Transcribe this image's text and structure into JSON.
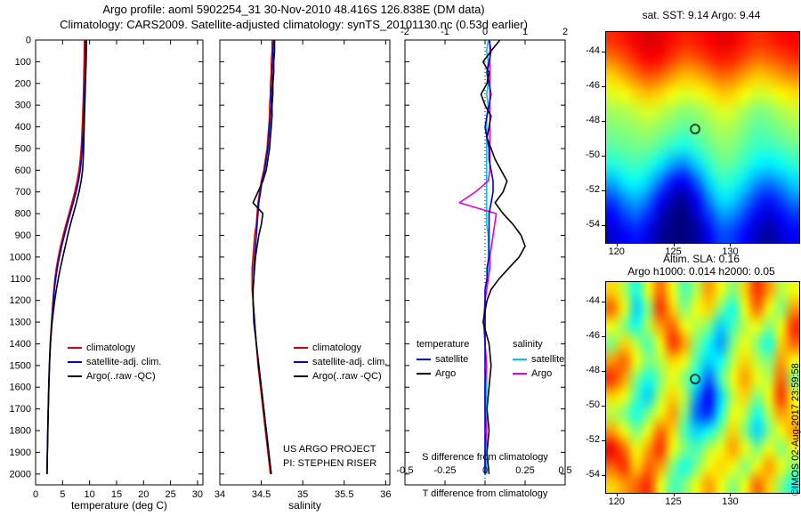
{
  "titles": {
    "line1": "Argo profile: aoml 5902254_31 30-Nov-2010 48.416S 126.838E (DM data)",
    "line2": "Climatology: CARS2009. Satellite-adjusted climatology: synTS_20101130.nc (0.53d earlier)"
  },
  "credit": "©IMOS 02-Aug-2017 23:59:58",
  "colors": {
    "climatology": "#dd0000",
    "satellite_adj": "#0000cc",
    "argo": "#000000",
    "satellite_sal": "#00c8dc",
    "argo_sal": "#e000e0"
  },
  "chart_data": [
    {
      "type": "line",
      "id": "temperature-profile",
      "xlabel": "temperature (deg C)",
      "xlim": [
        0,
        31
      ],
      "ylim": [
        0,
        2050
      ],
      "xticks": [
        0,
        5,
        10,
        15,
        20,
        25,
        30
      ],
      "yticks": [
        0,
        100,
        200,
        300,
        400,
        500,
        600,
        700,
        800,
        900,
        1000,
        1100,
        1200,
        1300,
        1400,
        1500,
        1600,
        1700,
        1800,
        1900,
        2000
      ],
      "depths": [
        0,
        50,
        100,
        150,
        200,
        250,
        300,
        350,
        400,
        450,
        500,
        550,
        600,
        650,
        700,
        750,
        800,
        850,
        900,
        950,
        1000,
        1050,
        1100,
        1150,
        1200,
        1300,
        1400,
        1500,
        1600,
        1700,
        1800,
        1900,
        2000
      ],
      "series": [
        {
          "name": "climatology",
          "color_key": "climatology",
          "values": [
            9.05,
            9.02,
            8.98,
            8.94,
            8.9,
            8.85,
            8.79,
            8.72,
            8.64,
            8.55,
            8.44,
            8.28,
            8.05,
            7.7,
            7.25,
            6.72,
            6.18,
            5.62,
            5.1,
            4.62,
            4.2,
            3.85,
            3.58,
            3.38,
            3.22,
            2.95,
            2.7,
            2.54,
            2.42,
            2.32,
            2.24,
            2.17,
            2.1
          ]
        },
        {
          "name": "satellite-adj. clim.",
          "color_key": "satellite_adj",
          "values": [
            9.3,
            9.28,
            9.24,
            9.19,
            9.13,
            9.07,
            9.01,
            8.94,
            8.87,
            8.78,
            8.66,
            8.5,
            8.28,
            7.95,
            7.5,
            6.98,
            6.42,
            5.85,
            5.32,
            4.83,
            4.4,
            4.02,
            3.72,
            3.48,
            3.3,
            3.0,
            2.73,
            2.56,
            2.44,
            2.34,
            2.26,
            2.18,
            2.11
          ]
        },
        {
          "name": "Argo(..raw -QC)",
          "color_key": "argo",
          "values": [
            9.42,
            9.4,
            9.36,
            9.3,
            9.24,
            9.18,
            9.12,
            9.06,
            9.0,
            8.95,
            8.9,
            8.82,
            8.7,
            8.45,
            8.05,
            7.55,
            7.0,
            6.45,
            5.95,
            5.5,
            5.05,
            4.6,
            4.2,
            3.85,
            3.55,
            3.05,
            2.75,
            2.58,
            2.45,
            2.35,
            2.27,
            2.2,
            2.13
          ]
        }
      ]
    },
    {
      "type": "line",
      "id": "salinity-profile",
      "xlabel": "salinity",
      "xlim": [
        34,
        36.05
      ],
      "ylim": [
        0,
        2050
      ],
      "xticks": [
        34,
        34.5,
        35,
        35.5,
        36
      ],
      "yticks": [
        0,
        100,
        200,
        300,
        400,
        500,
        600,
        700,
        800,
        900,
        1000,
        1100,
        1200,
        1300,
        1400,
        1500,
        1600,
        1700,
        1800,
        1900,
        2000
      ],
      "depths": [
        0,
        50,
        100,
        150,
        200,
        250,
        300,
        350,
        400,
        450,
        500,
        550,
        600,
        650,
        700,
        750,
        800,
        850,
        900,
        950,
        1000,
        1050,
        1100,
        1150,
        1200,
        1300,
        1400,
        1500,
        1600,
        1700,
        1800,
        1900,
        2000
      ],
      "notes": [
        "US ARGO PROJECT",
        "PI: STEPHEN RISER"
      ],
      "series": [
        {
          "name": "climatology",
          "color_key": "climatology",
          "values": [
            34.63,
            34.63,
            34.62,
            34.62,
            34.61,
            34.61,
            34.6,
            34.6,
            34.59,
            34.58,
            34.57,
            34.55,
            34.53,
            34.5,
            34.48,
            34.46,
            34.45,
            34.44,
            34.42,
            34.41,
            34.4,
            34.39,
            34.39,
            34.39,
            34.4,
            34.42,
            34.44,
            34.46,
            34.49,
            34.52,
            34.55,
            34.58,
            34.61
          ]
        },
        {
          "name": "satellite-adj. clim.",
          "color_key": "satellite_adj",
          "values": [
            34.65,
            34.64,
            34.64,
            34.63,
            34.63,
            34.62,
            34.62,
            34.61,
            34.6,
            34.59,
            34.58,
            34.56,
            34.54,
            34.51,
            34.49,
            34.47,
            34.46,
            34.45,
            34.44,
            34.43,
            34.42,
            34.41,
            34.41,
            34.4,
            34.4,
            34.42,
            34.44,
            34.47,
            34.5,
            34.53,
            34.56,
            34.59,
            34.62
          ]
        },
        {
          "name": "Argo(..raw -QC)",
          "color_key": "argo",
          "values": [
            34.66,
            34.66,
            34.65,
            34.65,
            34.64,
            34.64,
            34.63,
            34.63,
            34.62,
            34.61,
            34.6,
            34.58,
            34.56,
            34.52,
            34.46,
            34.4,
            34.52,
            34.5,
            34.47,
            34.45,
            34.43,
            34.42,
            34.41,
            34.4,
            34.4,
            34.41,
            34.44,
            34.47,
            34.5,
            34.53,
            34.56,
            34.59,
            34.62
          ]
        }
      ]
    },
    {
      "type": "line",
      "id": "difference-profile",
      "xlabel": "T difference from climatology",
      "s_label": "S difference from climatology",
      "xlim": [
        -2,
        2
      ],
      "s_xlim": [
        -0.5,
        0.5
      ],
      "ylim": [
        0,
        2050
      ],
      "xticks": [
        -2,
        -1,
        0,
        1,
        2
      ],
      "s_ticks": [
        -0.5,
        -0.25,
        0,
        0.25,
        0.5
      ],
      "yticks": [
        0,
        100,
        200,
        300,
        400,
        500,
        600,
        700,
        800,
        900,
        1000,
        1100,
        1200,
        1300,
        1400,
        1500,
        1600,
        1700,
        1800,
        1900,
        2000
      ],
      "depths": [
        0,
        50,
        100,
        150,
        200,
        250,
        300,
        350,
        400,
        450,
        500,
        550,
        600,
        650,
        700,
        750,
        800,
        850,
        900,
        950,
        1000,
        1050,
        1100,
        1150,
        1200,
        1300,
        1400,
        1500,
        1600,
        1700,
        1800,
        1900,
        2000
      ],
      "zero_line": true,
      "legend": {
        "col1": {
          "header": "temperature",
          "items": [
            {
              "label": "satellite",
              "color_key": "satellite_adj"
            },
            {
              "label": "Argo",
              "color_key": "argo"
            }
          ]
        },
        "col2": {
          "header": "salinity",
          "items": [
            {
              "label": "satellite",
              "color_key": "satellite_sal"
            },
            {
              "label": "Argo",
              "color_key": "argo_sal"
            }
          ]
        }
      },
      "series": [
        {
          "name": "satellite S diff",
          "color_key": "satellite_sal",
          "scale": "S",
          "values": [
            0.02,
            0.01,
            0.02,
            0.01,
            0.02,
            0.01,
            0.02,
            0.01,
            0.01,
            0.01,
            0.01,
            0.01,
            0.01,
            0.01,
            0.01,
            0.01,
            0.01,
            0.01,
            0.02,
            0.02,
            0.02,
            0.02,
            0.02,
            0.01,
            0.0,
            0.0,
            0.0,
            0.01,
            0.01,
            0.01,
            0.01,
            0.01,
            0.01
          ]
        },
        {
          "name": "Argo S diff",
          "color_key": "argo_sal",
          "scale": "S",
          "values": [
            0.03,
            0.03,
            0.03,
            0.03,
            0.03,
            0.03,
            0.03,
            0.03,
            0.03,
            0.03,
            0.03,
            0.03,
            0.03,
            0.02,
            -0.06,
            -0.16,
            0.07,
            0.06,
            0.05,
            0.04,
            0.03,
            0.03,
            0.02,
            0.01,
            0.0,
            -0.01,
            0.0,
            0.01,
            0.0,
            0.0,
            0.01,
            0.0,
            0.0
          ]
        },
        {
          "name": "satellite T diff",
          "color_key": "satellite_adj",
          "scale": "T",
          "values": [
            0.1,
            0.15,
            0.1,
            0.05,
            0.1,
            0.15,
            0.1,
            0.05,
            0.0,
            0.05,
            0.1,
            0.1,
            0.15,
            0.2,
            0.2,
            0.15,
            0.1,
            0.1,
            0.1,
            0.1,
            0.1,
            0.05,
            0.05,
            0.0,
            0.0,
            0.0,
            0.0,
            0.0,
            0.0,
            0.0,
            0.0,
            0.0,
            0.0
          ]
        },
        {
          "name": "Argo T diff",
          "color_key": "argo",
          "scale": "T",
          "values": [
            0.37,
            0.15,
            -0.05,
            0.1,
            0.05,
            -0.1,
            0.0,
            0.15,
            0.1,
            0.05,
            0.15,
            0.25,
            0.4,
            0.55,
            0.45,
            0.25,
            0.45,
            0.7,
            0.9,
            1.0,
            0.85,
            0.6,
            0.35,
            0.15,
            0.05,
            -0.05,
            0.1,
            0.15,
            0.1,
            0.05,
            0.1,
            0.05,
            0.1
          ]
        }
      ]
    }
  ],
  "maps": {
    "sst": {
      "type": "heatmap",
      "title": "sat. SST: 9.14  Argo: 9.44",
      "xticks": [
        120,
        125,
        130
      ],
      "yticks": [
        -44,
        -46,
        -48,
        -50,
        -52,
        -54
      ],
      "lon_range": [
        119,
        136
      ],
      "lat_range": [
        -42.8,
        -55.0
      ],
      "marker": {
        "lon": 126.838,
        "lat": -48.416
      },
      "value_range": [
        4.75,
        13.25
      ],
      "grid": [
        [
          11.8,
          12.0,
          12.3,
          12.5,
          12.4,
          12.1,
          11.9,
          12.0,
          12.2,
          12.4,
          12.3,
          12.0,
          11.8,
          11.9,
          12.1,
          12.2
        ],
        [
          11.2,
          11.5,
          11.9,
          12.2,
          12.1,
          11.7,
          11.4,
          11.5,
          11.8,
          12.0,
          11.9,
          11.6,
          11.3,
          11.4,
          11.6,
          11.8
        ],
        [
          10.4,
          10.8,
          11.2,
          11.5,
          11.3,
          10.9,
          10.6,
          10.7,
          11.0,
          11.3,
          11.2,
          10.8,
          10.5,
          10.6,
          10.9,
          11.1
        ],
        [
          9.8,
          10.0,
          10.4,
          10.6,
          10.4,
          10.0,
          9.8,
          9.9,
          10.2,
          10.5,
          10.4,
          10.0,
          9.7,
          9.8,
          10.1,
          10.3
        ],
        [
          9.3,
          9.4,
          9.6,
          9.8,
          9.6,
          9.3,
          9.1,
          9.2,
          9.5,
          9.8,
          9.7,
          9.3,
          9.0,
          9.1,
          9.4,
          9.6
        ],
        [
          9.0,
          9.1,
          9.2,
          9.3,
          9.1,
          8.9,
          8.7,
          8.9,
          9.1,
          9.4,
          9.3,
          9.0,
          8.7,
          8.8,
          9.0,
          9.2
        ],
        [
          8.7,
          8.8,
          8.9,
          8.9,
          8.6,
          8.3,
          8.1,
          8.4,
          8.8,
          9.1,
          9.0,
          8.7,
          8.4,
          8.4,
          8.6,
          8.8
        ],
        [
          8.2,
          8.4,
          8.5,
          8.3,
          7.8,
          7.2,
          7.0,
          7.6,
          8.3,
          8.8,
          8.7,
          8.3,
          7.9,
          7.8,
          8.0,
          8.3
        ],
        [
          7.3,
          7.8,
          8.0,
          7.6,
          6.8,
          6.0,
          5.8,
          6.6,
          7.6,
          8.3,
          8.2,
          7.7,
          7.1,
          6.9,
          7.2,
          7.6
        ],
        [
          6.4,
          7.0,
          7.3,
          6.8,
          5.9,
          5.2,
          5.0,
          5.8,
          6.9,
          7.7,
          7.6,
          7.0,
          6.3,
          6.0,
          6.4,
          6.9
        ],
        [
          5.8,
          6.3,
          6.6,
          6.1,
          5.3,
          4.8,
          4.7,
          5.3,
          6.2,
          7.0,
          6.9,
          6.3,
          5.7,
          5.4,
          5.8,
          6.2
        ],
        [
          5.4,
          5.8,
          6.0,
          5.6,
          5.0,
          4.6,
          4.5,
          5.0,
          5.7,
          6.4,
          6.3,
          5.8,
          5.3,
          5.0,
          5.4,
          5.8
        ]
      ]
    },
    "sla": {
      "type": "heatmap",
      "title1": "Altim. SLA: 0.16",
      "title2": "Argo h1000: 0.014 h2000: 0.05",
      "xticks": [
        120,
        125,
        130
      ],
      "yticks": [
        -44,
        -46,
        -48,
        -50,
        -52,
        -54
      ],
      "lon_range": [
        119,
        136
      ],
      "lat_range": [
        -42.8,
        -55.0
      ],
      "marker": {
        "lon": 126.838,
        "lat": -48.416
      },
      "value_range": [
        -0.45,
        0.45
      ],
      "grid": [
        [
          0.15,
          0.05,
          -0.1,
          0.1,
          0.25,
          0.1,
          -0.05,
          0.05,
          0.2,
          0.1,
          0.0,
          0.15,
          0.3,
          0.2,
          0.05,
          0.1
        ],
        [
          0.25,
          0.1,
          -0.15,
          0.0,
          0.3,
          0.15,
          0.0,
          0.1,
          0.15,
          0.0,
          -0.1,
          0.1,
          0.25,
          0.1,
          0.0,
          0.2
        ],
        [
          0.1,
          0.0,
          -0.1,
          0.05,
          0.2,
          0.25,
          0.1,
          0.05,
          0.0,
          -0.15,
          -0.05,
          0.05,
          0.1,
          0.0,
          0.1,
          0.3
        ],
        [
          0.0,
          0.15,
          0.05,
          -0.05,
          0.1,
          0.3,
          0.2,
          0.0,
          -0.1,
          -0.2,
          0.0,
          0.1,
          0.0,
          -0.1,
          0.15,
          0.25
        ],
        [
          0.2,
          0.25,
          0.1,
          0.0,
          0.05,
          0.15,
          0.1,
          -0.05,
          -0.15,
          -0.1,
          0.05,
          0.15,
          0.05,
          0.0,
          0.2,
          0.1
        ],
        [
          0.3,
          0.2,
          0.0,
          -0.1,
          0.0,
          0.1,
          0.0,
          -0.1,
          -0.25,
          -0.05,
          0.1,
          0.2,
          0.1,
          0.05,
          0.25,
          0.0
        ],
        [
          0.15,
          0.1,
          -0.05,
          -0.15,
          0.05,
          0.15,
          0.05,
          -0.2,
          -0.35,
          -0.15,
          0.05,
          0.15,
          0.0,
          0.1,
          0.3,
          0.1
        ],
        [
          0.05,
          0.0,
          -0.1,
          0.0,
          0.1,
          0.2,
          0.0,
          -0.25,
          -0.3,
          -0.1,
          0.1,
          0.05,
          -0.1,
          0.05,
          0.2,
          0.15
        ],
        [
          0.2,
          0.1,
          0.0,
          0.1,
          0.25,
          0.15,
          -0.05,
          -0.15,
          -0.1,
          0.0,
          0.15,
          0.0,
          -0.15,
          0.0,
          0.1,
          0.2
        ],
        [
          0.35,
          0.25,
          0.1,
          0.2,
          0.3,
          0.1,
          0.0,
          -0.05,
          0.05,
          0.1,
          0.2,
          0.1,
          0.0,
          0.1,
          0.0,
          0.1
        ],
        [
          0.25,
          0.3,
          0.15,
          0.25,
          0.2,
          0.0,
          -0.1,
          0.0,
          0.1,
          0.15,
          0.1,
          0.0,
          0.1,
          0.2,
          0.1,
          0.0
        ],
        [
          0.15,
          0.2,
          0.25,
          0.3,
          0.1,
          -0.05,
          0.0,
          0.1,
          0.2,
          0.1,
          0.0,
          0.1,
          0.25,
          0.15,
          0.0,
          -0.1
        ]
      ]
    }
  }
}
